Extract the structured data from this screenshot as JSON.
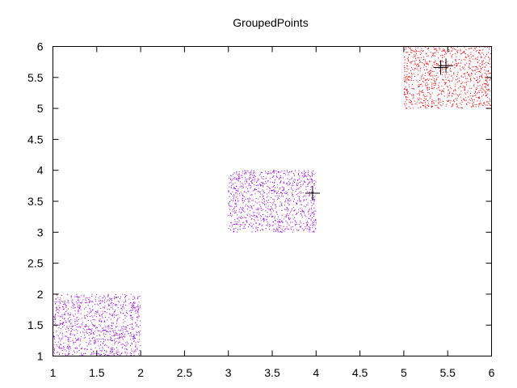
{
  "chart_data": {
    "type": "scatter",
    "title": "GroupedPoints",
    "xlabel": "",
    "ylabel": "",
    "xlim": [
      1,
      6
    ],
    "ylim": [
      1,
      6
    ],
    "xticks": [
      "1",
      "1.5",
      "2",
      "2.5",
      "3",
      "3.5",
      "4",
      "4.5",
      "5",
      "5.5",
      "6"
    ],
    "yticks": [
      "1",
      "1.5",
      "2",
      "2.5",
      "3",
      "3.5",
      "4",
      "4.5",
      "5",
      "5.5",
      "6"
    ],
    "grid": false,
    "legend": "none",
    "series": [
      {
        "x_range": [
          1,
          2
        ],
        "y_range": [
          1,
          2
        ],
        "color": "#9400d3",
        "marker": "dot",
        "approx_count": 1000
      },
      {
        "x_range": [
          3,
          4
        ],
        "y_range": [
          3,
          4
        ],
        "color": "#9400d3",
        "marker": "dot",
        "approx_count": 1000
      },
      {
        "x_range": [
          5,
          6
        ],
        "y_range": [
          5,
          6
        ],
        "color": "#e00000",
        "marker": "dot",
        "approx_count": 1000
      },
      {
        "x": [
          3.96,
          5.42,
          5.48
        ],
        "y": [
          3.63,
          5.66,
          5.69
        ],
        "color": "#000000",
        "marker": "plus"
      }
    ]
  }
}
